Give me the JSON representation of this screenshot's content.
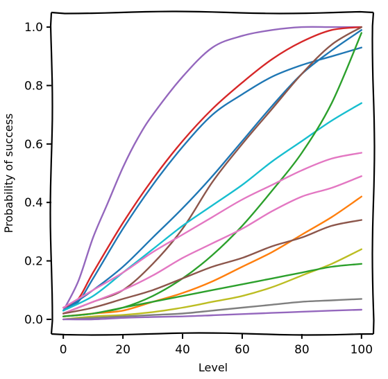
{
  "chart_data": {
    "type": "line",
    "xlabel": "Level",
    "ylabel": "Probability of success",
    "xlim": [
      -4,
      104
    ],
    "ylim": [
      -0.05,
      1.05
    ],
    "xticks": [
      0,
      20,
      40,
      60,
      80,
      100
    ],
    "xtick_labels": [
      "0",
      "20",
      "40",
      "60",
      "80",
      "100"
    ],
    "yticks": [
      0.0,
      0.2,
      0.4,
      0.6,
      0.8,
      1.0
    ],
    "ytick_labels": [
      "0.0",
      "0.2",
      "0.4",
      "0.6",
      "0.8",
      "1.0"
    ],
    "grid": false,
    "style": "xkcd",
    "series": [
      {
        "color": "#9467bd",
        "x": [
          0,
          5,
          10,
          15,
          20,
          25,
          30,
          40,
          50,
          60,
          70,
          80,
          90,
          100
        ],
        "y": [
          0.03,
          0.13,
          0.28,
          0.4,
          0.52,
          0.62,
          0.7,
          0.83,
          0.93,
          0.97,
          0.99,
          1.0,
          1.0,
          1.0
        ]
      },
      {
        "color": "#d62728",
        "x": [
          0,
          5,
          10,
          20,
          30,
          40,
          50,
          60,
          70,
          80,
          90,
          100
        ],
        "y": [
          0.04,
          0.07,
          0.16,
          0.33,
          0.48,
          0.61,
          0.72,
          0.81,
          0.89,
          0.95,
          0.99,
          1.0
        ]
      },
      {
        "color": "#1f77b4",
        "x": [
          0,
          5,
          10,
          20,
          30,
          40,
          50,
          60,
          70,
          80,
          90,
          100
        ],
        "y": [
          0.03,
          0.06,
          0.14,
          0.31,
          0.46,
          0.59,
          0.7,
          0.77,
          0.83,
          0.87,
          0.9,
          0.93
        ]
      },
      {
        "color": "#1f77b4",
        "x": [
          0,
          10,
          20,
          30,
          40,
          50,
          60,
          70,
          80,
          90,
          100
        ],
        "y": [
          0.03,
          0.1,
          0.18,
          0.28,
          0.38,
          0.49,
          0.61,
          0.73,
          0.84,
          0.92,
          0.99
        ]
      },
      {
        "color": "#8c564b",
        "x": [
          0,
          10,
          20,
          30,
          40,
          50,
          60,
          70,
          80,
          90,
          100
        ],
        "y": [
          0.02,
          0.06,
          0.1,
          0.19,
          0.31,
          0.47,
          0.6,
          0.72,
          0.84,
          0.94,
          1.0
        ]
      },
      {
        "color": "#17becf",
        "x": [
          0,
          10,
          20,
          30,
          40,
          50,
          60,
          70,
          80,
          90,
          100
        ],
        "y": [
          0.03,
          0.08,
          0.16,
          0.24,
          0.32,
          0.39,
          0.46,
          0.54,
          0.61,
          0.68,
          0.74
        ]
      },
      {
        "color": "#2ca02c",
        "x": [
          0,
          10,
          20,
          30,
          40,
          50,
          60,
          70,
          80,
          90,
          100
        ],
        "y": [
          0.01,
          0.02,
          0.04,
          0.08,
          0.14,
          0.22,
          0.32,
          0.44,
          0.57,
          0.74,
          0.98
        ]
      },
      {
        "color": "#e377c2",
        "x": [
          0,
          10,
          20,
          30,
          40,
          50,
          60,
          70,
          80,
          90,
          100
        ],
        "y": [
          0.04,
          0.1,
          0.16,
          0.23,
          0.29,
          0.35,
          0.41,
          0.46,
          0.51,
          0.55,
          0.57
        ]
      },
      {
        "color": "#e377c2",
        "x": [
          0,
          10,
          20,
          30,
          40,
          50,
          60,
          70,
          80,
          90,
          100
        ],
        "y": [
          0.02,
          0.06,
          0.1,
          0.15,
          0.21,
          0.26,
          0.31,
          0.37,
          0.42,
          0.45,
          0.49
        ]
      },
      {
        "color": "#ff7f0e",
        "x": [
          0,
          10,
          20,
          30,
          40,
          50,
          60,
          70,
          80,
          90,
          100
        ],
        "y": [
          0.01,
          0.02,
          0.03,
          0.06,
          0.09,
          0.13,
          0.18,
          0.23,
          0.29,
          0.35,
          0.42
        ]
      },
      {
        "color": "#8c564b",
        "x": [
          0,
          10,
          20,
          30,
          40,
          50,
          60,
          70,
          80,
          90,
          100
        ],
        "y": [
          0.02,
          0.04,
          0.07,
          0.1,
          0.14,
          0.18,
          0.21,
          0.25,
          0.28,
          0.32,
          0.34
        ]
      },
      {
        "color": "#bcbd22",
        "x": [
          0,
          10,
          20,
          30,
          40,
          50,
          60,
          70,
          80,
          90,
          100
        ],
        "y": [
          0.0,
          0.01,
          0.015,
          0.025,
          0.04,
          0.06,
          0.08,
          0.11,
          0.15,
          0.19,
          0.24
        ]
      },
      {
        "color": "#2ca02c",
        "x": [
          0,
          10,
          20,
          30,
          40,
          50,
          60,
          70,
          80,
          90,
          100
        ],
        "y": [
          0.01,
          0.02,
          0.04,
          0.06,
          0.08,
          0.1,
          0.12,
          0.14,
          0.16,
          0.18,
          0.19
        ]
      },
      {
        "color": "#7f7f7f",
        "x": [
          0,
          10,
          20,
          30,
          40,
          50,
          60,
          70,
          80,
          90,
          100
        ],
        "y": [
          0.0,
          0.005,
          0.01,
          0.015,
          0.02,
          0.03,
          0.04,
          0.05,
          0.06,
          0.065,
          0.07
        ]
      },
      {
        "color": "#9467bd",
        "x": [
          0,
          10,
          20,
          30,
          40,
          50,
          60,
          70,
          80,
          90,
          100
        ],
        "y": [
          0.0,
          0.0,
          0.005,
          0.008,
          0.01,
          0.014,
          0.018,
          0.022,
          0.026,
          0.03,
          0.033
        ]
      }
    ]
  }
}
